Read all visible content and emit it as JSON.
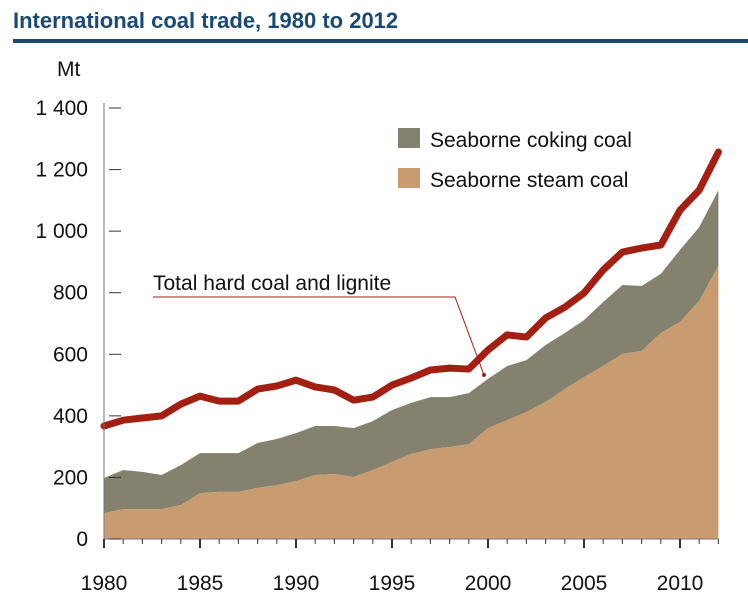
{
  "chart_data": {
    "type": "area",
    "title": "International coal trade, 1980 to 2012",
    "ylabel": "Mt",
    "xlabel": "",
    "ylim": [
      0,
      1400
    ],
    "xlim": [
      1980,
      2012
    ],
    "yticks": [
      0,
      200,
      400,
      600,
      800,
      1000,
      1200,
      1400
    ],
    "ytick_labels": [
      "0",
      "200",
      "400",
      "600",
      "800",
      "1 000",
      "1 200",
      "1 400"
    ],
    "xticks": [
      1980,
      1985,
      1990,
      1995,
      2000,
      2005,
      2010
    ],
    "xtick_labels": [
      "1980",
      "1985",
      "1990",
      "1995",
      "2000",
      "2005",
      "2010"
    ],
    "grid": false,
    "legend_position": "top-right",
    "x": [
      1980,
      1981,
      1982,
      1983,
      1984,
      1985,
      1986,
      1987,
      1988,
      1989,
      1990,
      1991,
      1992,
      1993,
      1994,
      1995,
      1996,
      1997,
      1998,
      1999,
      2000,
      2001,
      2002,
      2003,
      2004,
      2005,
      2006,
      2007,
      2008,
      2009,
      2010,
      2011,
      2012
    ],
    "series": [
      {
        "name": "Seaborne steam coal",
        "kind": "stacked-area",
        "color": "#c89b70",
        "values": [
          84,
          97,
          97,
          97,
          110,
          149,
          153,
          153,
          166,
          175,
          188,
          208,
          211,
          201,
          224,
          250,
          276,
          292,
          299,
          308,
          360,
          386,
          412,
          445,
          487,
          526,
          562,
          601,
          611,
          669,
          705,
          773,
          887
        ]
      },
      {
        "name": "Seaborne coking coal",
        "kind": "stacked-area",
        "color": "#84826f",
        "values": [
          114,
          127,
          121,
          111,
          130,
          130,
          126,
          126,
          146,
          150,
          156,
          159,
          156,
          159,
          159,
          169,
          166,
          169,
          162,
          166,
          160,
          176,
          169,
          185,
          182,
          185,
          208,
          224,
          211,
          192,
          234,
          240,
          246
        ]
      },
      {
        "name": "Total hard coal and lignite",
        "kind": "line",
        "color": "#a31f12",
        "values": [
          367,
          386,
          393,
          400,
          438,
          464,
          448,
          448,
          487,
          497,
          516,
          494,
          484,
          451,
          461,
          500,
          523,
          549,
          555,
          552,
          614,
          663,
          656,
          718,
          753,
          799,
          874,
          932,
          945,
          955,
          1068,
          1133,
          1257
        ]
      }
    ],
    "legend": [
      "Seaborne coking coal",
      "Seaborne steam coal"
    ],
    "annotation": {
      "text": "Total hard coal and lignite",
      "points_to_year": 2000
    }
  }
}
